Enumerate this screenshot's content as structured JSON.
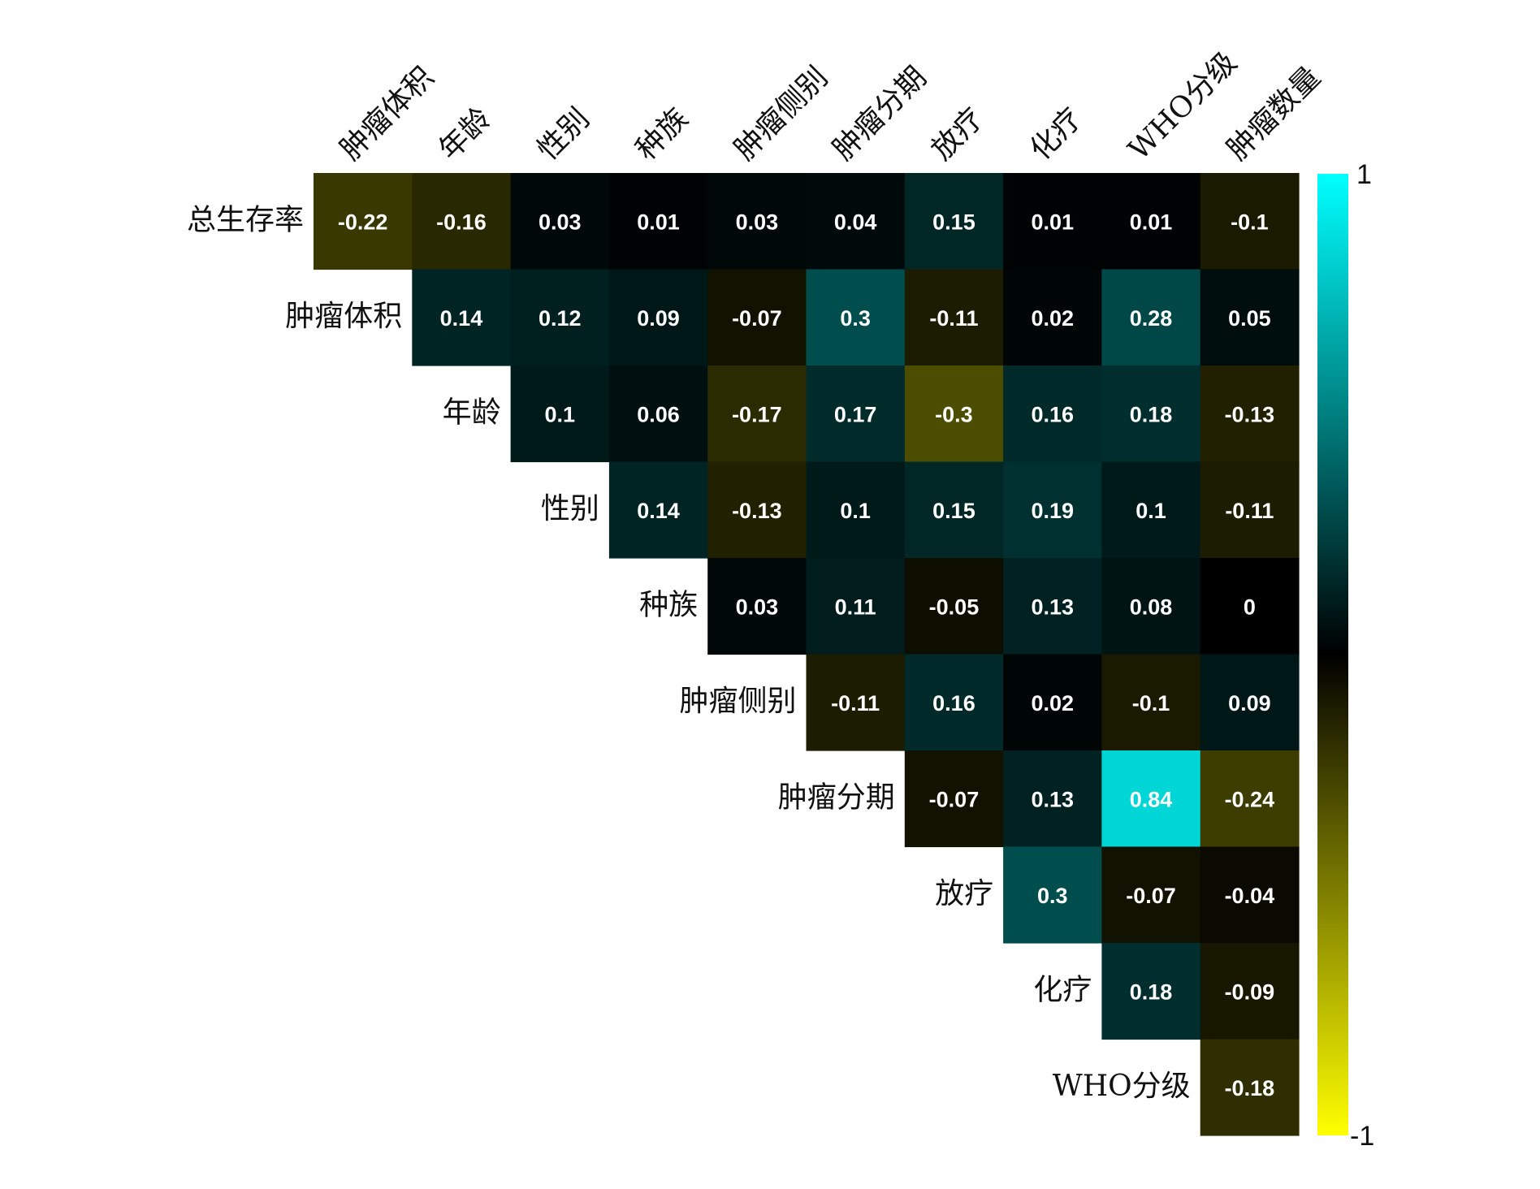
{
  "chart_data": {
    "type": "heatmap",
    "title": "",
    "row_labels": [
      "总生存率",
      "肿瘤体积",
      "年龄",
      "性别",
      "种族",
      "肿瘤侧别",
      "肿瘤分期",
      "放疗",
      "化疗",
      "WHO分级"
    ],
    "col_labels": [
      "肿瘤体积",
      "年龄",
      "性别",
      "种族",
      "肿瘤侧别",
      "肿瘤分期",
      "放疗",
      "化疗",
      "WHO分级",
      "肿瘤数量"
    ],
    "layout": "upper-triangle",
    "values": [
      [
        -0.22,
        -0.16,
        0.03,
        0.01,
        0.03,
        0.04,
        0.15,
        0.01,
        0.01,
        -0.1
      ],
      [
        0.14,
        0.12,
        0.09,
        -0.07,
        0.3,
        -0.11,
        0.02,
        0.28,
        0.05
      ],
      [
        0.1,
        0.06,
        -0.17,
        0.17,
        -0.3,
        0.16,
        0.18,
        -0.13
      ],
      [
        0.14,
        -0.13,
        0.1,
        0.15,
        0.19,
        0.1,
        -0.11
      ],
      [
        0.03,
        0.11,
        -0.05,
        0.13,
        0.08,
        0
      ],
      [
        -0.11,
        0.16,
        0.02,
        -0.1,
        0.09
      ],
      [
        -0.07,
        0.13,
        0.84,
        -0.24
      ],
      [
        0.3,
        -0.07,
        -0.04
      ],
      [
        0.18,
        -0.09
      ],
      [
        -0.18
      ]
    ],
    "colorbar": {
      "min": -1,
      "max": 1,
      "min_label": "-1",
      "max_label": "1",
      "colors": {
        "min": "#ffff00",
        "mid": "#000000",
        "max": "#00ffff"
      }
    }
  }
}
